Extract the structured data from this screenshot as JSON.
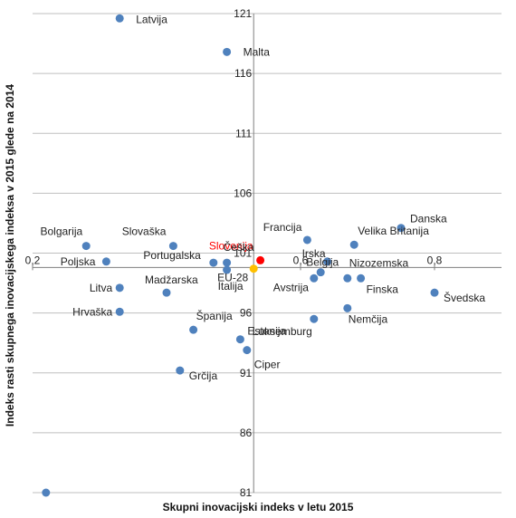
{
  "chart_data": {
    "type": "scatter",
    "title": "",
    "xlabel": "Skupni inovacijski indeks v letu 2015",
    "ylabel": "Indeks rasti skupnega inovacijskega indeksa v 2015 glede na 2014",
    "xlim": [
      0.2,
      0.9
    ],
    "ylim": [
      81,
      121
    ],
    "x_ticks": [
      "0,2",
      "0,6",
      "0,8"
    ],
    "x_tick_values": [
      0.2,
      0.6,
      0.8
    ],
    "y_ticks": [
      "121",
      "116",
      "111",
      "106",
      "101",
      "96",
      "91",
      "86",
      "81"
    ],
    "y_tick_values": [
      121,
      116,
      111,
      106,
      101,
      96,
      91,
      86,
      81
    ],
    "x_axis_crosses_y_at": 99.8,
    "grid": "horizontal",
    "colors": {
      "default": "#4f81bd",
      "slovenia": "#ff0000",
      "eu": "#ffc000",
      "slovenia_label": "#ff0000",
      "grid": "#bfbfbf"
    },
    "points": [
      {
        "label": "Latvija",
        "x": 0.33,
        "y": 120.6
      },
      {
        "label": "Malta",
        "x": 0.49,
        "y": 117.8
      },
      {
        "label": "Danska",
        "x": 0.75,
        "y": 103.1
      },
      {
        "label": "Francija",
        "x": 0.61,
        "y": 102.1
      },
      {
        "label": "Velika Britanija",
        "x": 0.68,
        "y": 101.7
      },
      {
        "label": "Bolgarija",
        "x": 0.28,
        "y": 101.6
      },
      {
        "label": "Slovaška",
        "x": 0.41,
        "y": 101.6
      },
      {
        "label": "Slovenija",
        "x": 0.54,
        "y": 100.4,
        "highlight": "slovenia"
      },
      {
        "label": "Irska",
        "x": 0.64,
        "y": 100.3
      },
      {
        "label": "Češka",
        "x": 0.49,
        "y": 100.2
      },
      {
        "label": "Poljska",
        "x": 0.31,
        "y": 100.3
      },
      {
        "label": "Portugalska",
        "x": 0.47,
        "y": 100.2
      },
      {
        "label": "EU-28",
        "x": 0.53,
        "y": 99.7,
        "highlight": "eu"
      },
      {
        "label": "Italija",
        "x": 0.49,
        "y": 99.6
      },
      {
        "label": "Belgija",
        "x": 0.63,
        "y": 99.4
      },
      {
        "label": "Nizozemska",
        "x": 0.67,
        "y": 98.9
      },
      {
        "label": "Avstrija",
        "x": 0.62,
        "y": 98.9
      },
      {
        "label": "Finska",
        "x": 0.69,
        "y": 98.9
      },
      {
        "label": "Litva",
        "x": 0.33,
        "y": 98.1
      },
      {
        "label": "Madžarska",
        "x": 0.4,
        "y": 97.7
      },
      {
        "label": "Švedska",
        "x": 0.8,
        "y": 97.7
      },
      {
        "label": "Hrvaška",
        "x": 0.33,
        "y": 96.1
      },
      {
        "label": "Nemčija",
        "x": 0.67,
        "y": 96.4
      },
      {
        "label": "Luksemburg",
        "x": 0.62,
        "y": 95.5
      },
      {
        "label": "Španija",
        "x": 0.44,
        "y": 94.6
      },
      {
        "label": "Estonija",
        "x": 0.51,
        "y": 93.8
      },
      {
        "label": "Ciper",
        "x": 0.52,
        "y": 92.9
      },
      {
        "label": "Grčija",
        "x": 0.42,
        "y": 91.2
      },
      {
        "label": "",
        "x": 0.22,
        "y": 81
      }
    ]
  }
}
